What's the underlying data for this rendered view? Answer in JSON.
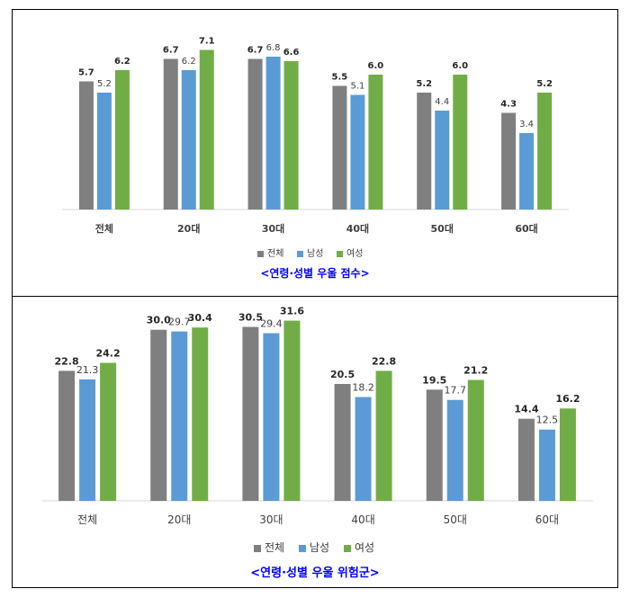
{
  "chart_data": [
    {
      "type": "bar",
      "categories": [
        "전체",
        "20대",
        "30대",
        "40대",
        "50대",
        "60대"
      ],
      "series": [
        {
          "name": "전체",
          "values": [
            5.7,
            6.7,
            6.7,
            5.5,
            5.2,
            4.3
          ]
        },
        {
          "name": "남성",
          "values": [
            5.2,
            6.2,
            6.8,
            5.1,
            4.4,
            3.4
          ]
        },
        {
          "name": "여성",
          "values": [
            6.2,
            7.1,
            6.6,
            6.0,
            6.0,
            5.2
          ]
        }
      ],
      "labels": [
        [
          "5.7",
          "6.7",
          "6.7",
          "5.5",
          "5.2",
          "4.3"
        ],
        [
          "5.2",
          "6.2",
          "6.8",
          "5.1",
          "4.4",
          "3.4"
        ],
        [
          "6.2",
          "7.1",
          "6.6",
          "6.0",
          "6.0",
          "5.2"
        ]
      ],
      "ylim": [
        0,
        8
      ],
      "grid": false,
      "legend": "bottom",
      "colors": [
        "#7f7f7f",
        "#5b9bd5",
        "#70ad47"
      ],
      "caption": "<연령·성별 우울 점수>",
      "caption_color": "#0000ff"
    },
    {
      "type": "bar",
      "categories": [
        "전체",
        "20대",
        "30대",
        "40대",
        "50대",
        "60대"
      ],
      "series": [
        {
          "name": "전체",
          "values": [
            22.8,
            30.0,
            30.5,
            20.5,
            19.5,
            14.4
          ]
        },
        {
          "name": "남성",
          "values": [
            21.3,
            29.7,
            29.4,
            18.2,
            17.7,
            12.5
          ]
        },
        {
          "name": "여성",
          "values": [
            24.2,
            30.4,
            31.6,
            22.8,
            21.2,
            16.2
          ]
        }
      ],
      "labels": [
        [
          "22.8",
          "30.0",
          "30.5",
          "20.5",
          "19.5",
          "14.4"
        ],
        [
          "21.3",
          "29.7",
          "29.4",
          "18.2",
          "17.7",
          "12.5"
        ],
        [
          "24.2",
          "30.4",
          "31.6",
          "22.8",
          "21.2",
          "16.2"
        ]
      ],
      "ylim": [
        0,
        35
      ],
      "grid": false,
      "legend": "bottom",
      "colors": [
        "#7f7f7f",
        "#5b9bd5",
        "#70ad47"
      ],
      "caption": "<연령·성별 우울 위험군>",
      "caption_color": "#0000ff"
    }
  ]
}
